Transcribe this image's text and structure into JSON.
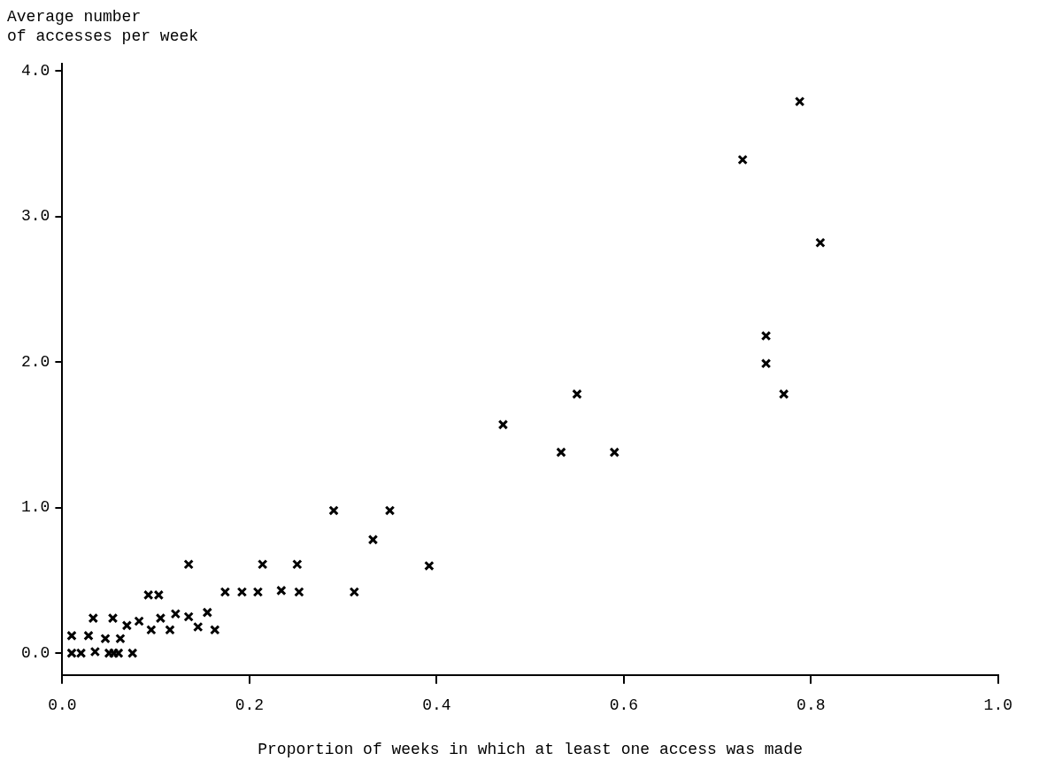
{
  "chart_data": {
    "type": "scatter",
    "xlabel": "Proportion of weeks in which at least one access was made",
    "ylabel": "Average number\nof accesses per week",
    "marker": "cross",
    "grid": false,
    "legend": false,
    "xlim": [
      0,
      1.0
    ],
    "ylim": [
      -0.15,
      4.05
    ],
    "xticks": [
      {
        "value": 0,
        "label": "0.0"
      },
      {
        "value": 0.2,
        "label": "0.2"
      },
      {
        "value": 0.4,
        "label": "0.4"
      },
      {
        "value": 0.6,
        "label": "0.6"
      },
      {
        "value": 0.8,
        "label": "0.8"
      },
      {
        "value": 1,
        "label": "1.0"
      }
    ],
    "yticks": [
      {
        "value": 0,
        "label": "0.0"
      },
      {
        "value": 1,
        "label": "1.0"
      },
      {
        "value": 2,
        "label": "2.0"
      },
      {
        "value": 3,
        "label": "3.0"
      },
      {
        "value": 4,
        "label": "4.0"
      }
    ],
    "series": [
      {
        "color": "#000000",
        "x": [
          0.01,
          0.02,
          0.035,
          0.05,
          0.055,
          0.06,
          0.075,
          0.01,
          0.028,
          0.046,
          0.062,
          0.033,
          0.054,
          0.069,
          0.082,
          0.095,
          0.105,
          0.115,
          0.121,
          0.135,
          0.145,
          0.155,
          0.163,
          0.092,
          0.103,
          0.135,
          0.174,
          0.192,
          0.209,
          0.234,
          0.253,
          0.214,
          0.251,
          0.29,
          0.312,
          0.35,
          0.332,
          0.392,
          0.471,
          0.533,
          0.55,
          0.59,
          0.727,
          0.788,
          0.81,
          0.752,
          0.752,
          0.771
        ],
        "values": [
          0,
          0,
          0.01,
          0,
          0,
          0,
          0,
          0.12,
          0.12,
          0.1,
          0.1,
          0.24,
          0.24,
          0.19,
          0.22,
          0.16,
          0.24,
          0.16,
          0.27,
          0.25,
          0.18,
          0.28,
          0.16,
          0.4,
          0.4,
          0.61,
          0.42,
          0.42,
          0.42,
          0.43,
          0.42,
          0.61,
          0.61,
          0.98,
          0.42,
          0.98,
          0.78,
          0.6,
          1.57,
          1.38,
          1.78,
          1.38,
          3.39,
          3.79,
          2.82,
          2.18,
          1.99,
          1.78
        ]
      }
    ]
  }
}
